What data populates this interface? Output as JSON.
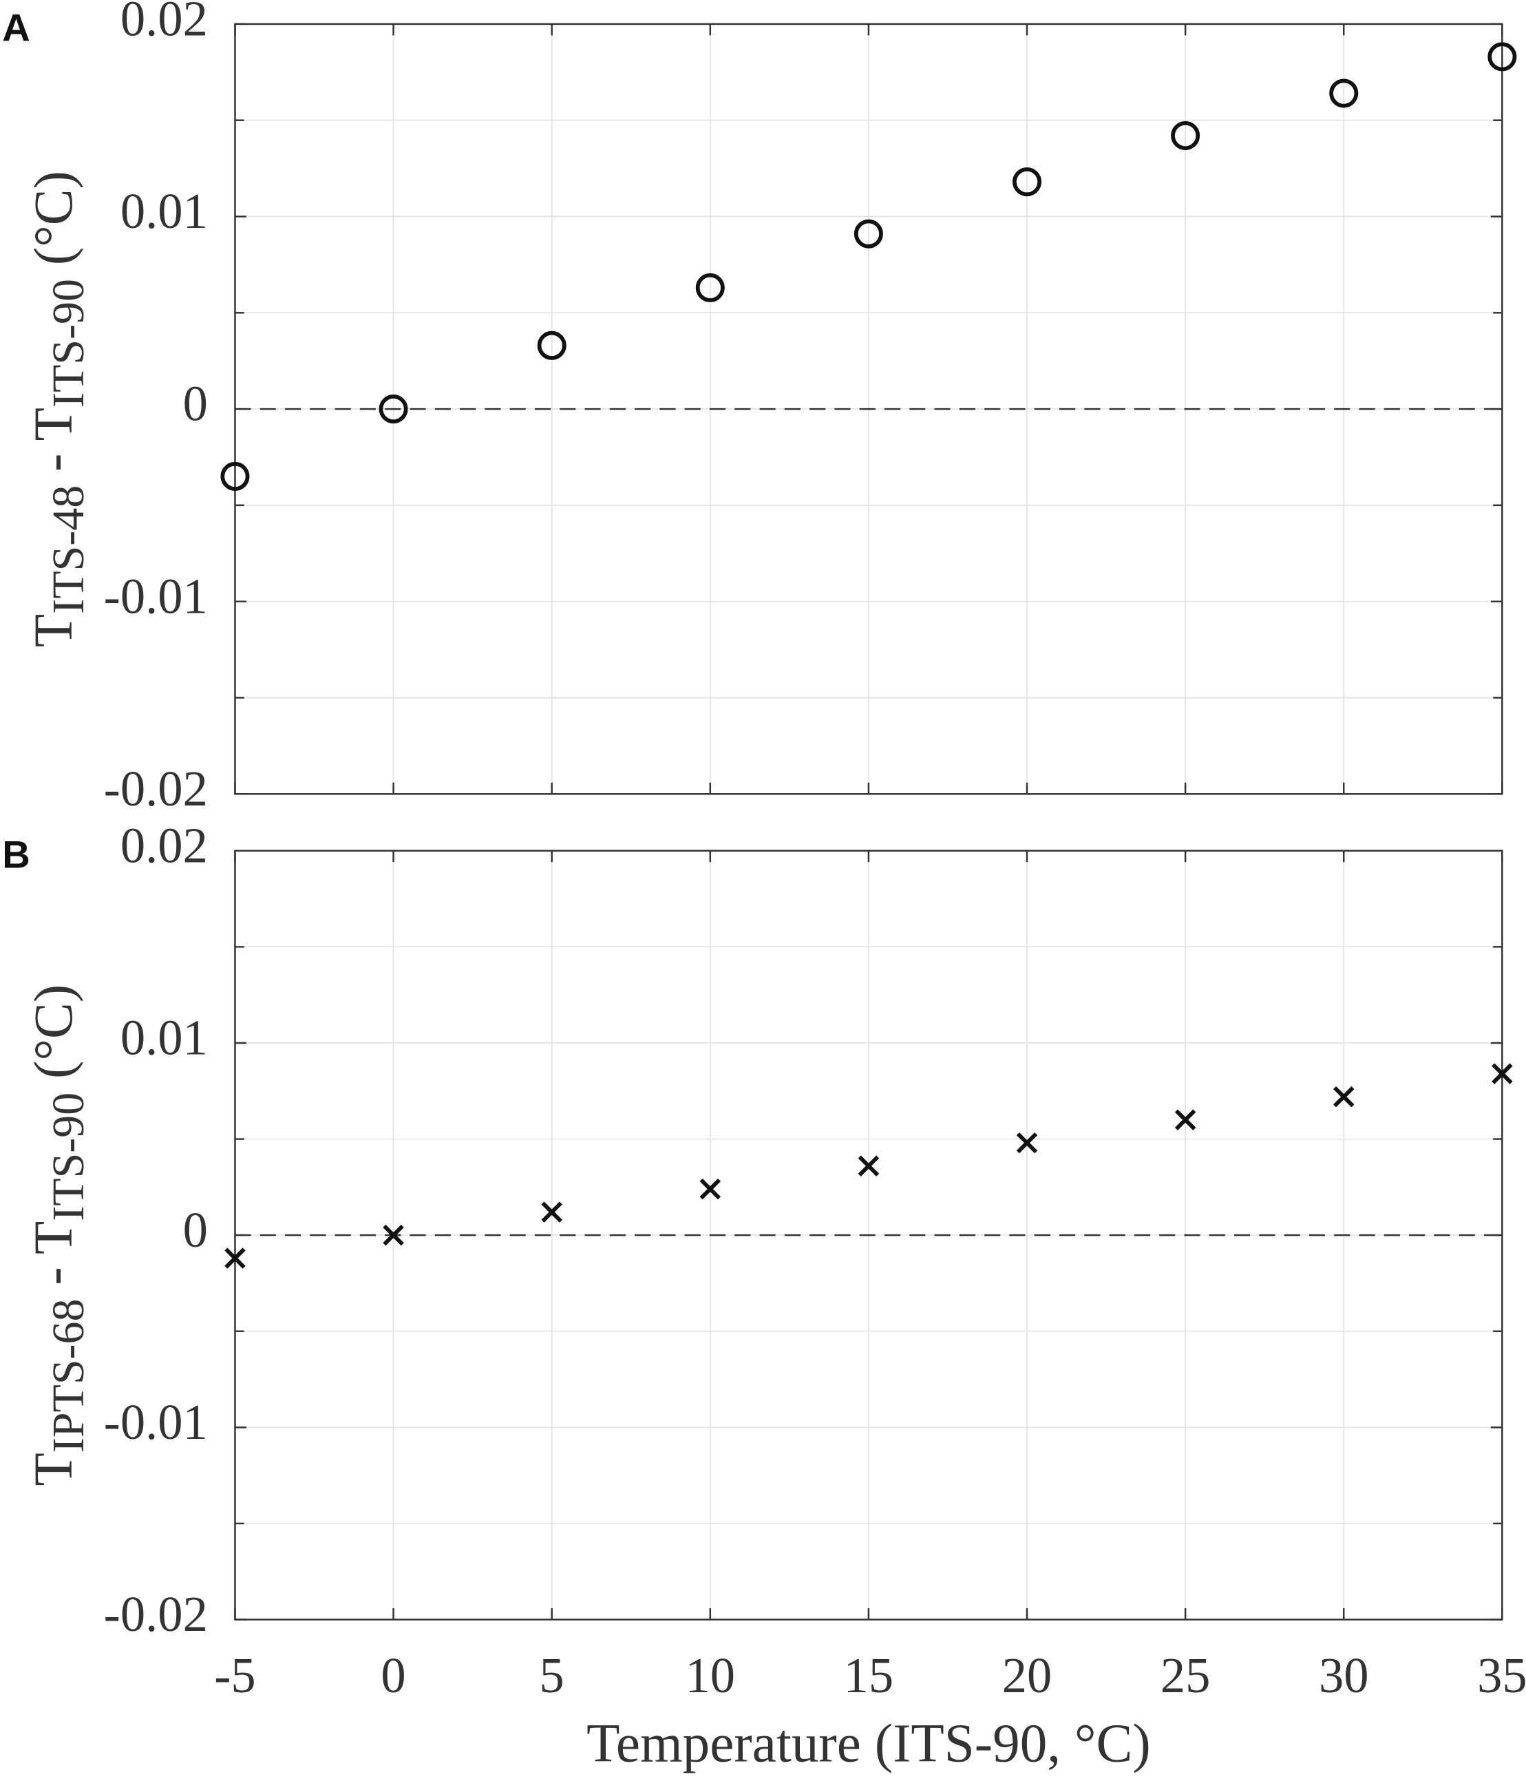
{
  "chart_data": [
    {
      "type": "scatter",
      "panel": "A",
      "ylabel": [
        "T",
        "ITS-48",
        " - T",
        "ITS-90",
        " (°C)"
      ],
      "x": [
        -5,
        0,
        5,
        10,
        15,
        20,
        25,
        30,
        35
      ],
      "values": [
        -0.0035,
        0,
        0.0033,
        0.0063,
        0.0091,
        0.0118,
        0.0142,
        0.0164,
        0.0183
      ],
      "marker": "o",
      "color": "#111111",
      "xlim": [
        -5,
        35
      ],
      "xticks": [
        -5,
        0,
        5,
        10,
        15,
        20,
        25,
        30,
        35
      ],
      "show_xtick_labels": false,
      "ylim": [
        -0.02,
        0.02
      ],
      "yticks": [
        -0.02,
        -0.01,
        0,
        0.01,
        0.02
      ],
      "grid": true,
      "minor_grid": true,
      "zero_line": true
    },
    {
      "type": "scatter",
      "panel": "B",
      "ylabel": [
        "T",
        "IPTS-68",
        " - T",
        "ITS-90",
        " (°C)"
      ],
      "xlabel": "Temperature (ITS-90, °C)",
      "x": [
        -5,
        0,
        5,
        10,
        15,
        20,
        25,
        30,
        35
      ],
      "values": [
        -0.0012,
        0,
        0.0012,
        0.0024,
        0.0036,
        0.0048,
        0.006,
        0.0072,
        0.0084
      ],
      "marker": "x",
      "color": "#111111",
      "xlim": [
        -5,
        35
      ],
      "xticks": [
        -5,
        0,
        5,
        10,
        15,
        20,
        25,
        30,
        35
      ],
      "show_xtick_labels": true,
      "ylim": [
        -0.02,
        0.02
      ],
      "yticks": [
        -0.02,
        -0.01,
        0,
        0.01,
        0.02
      ],
      "grid": true,
      "minor_grid": true,
      "zero_line": true
    }
  ]
}
